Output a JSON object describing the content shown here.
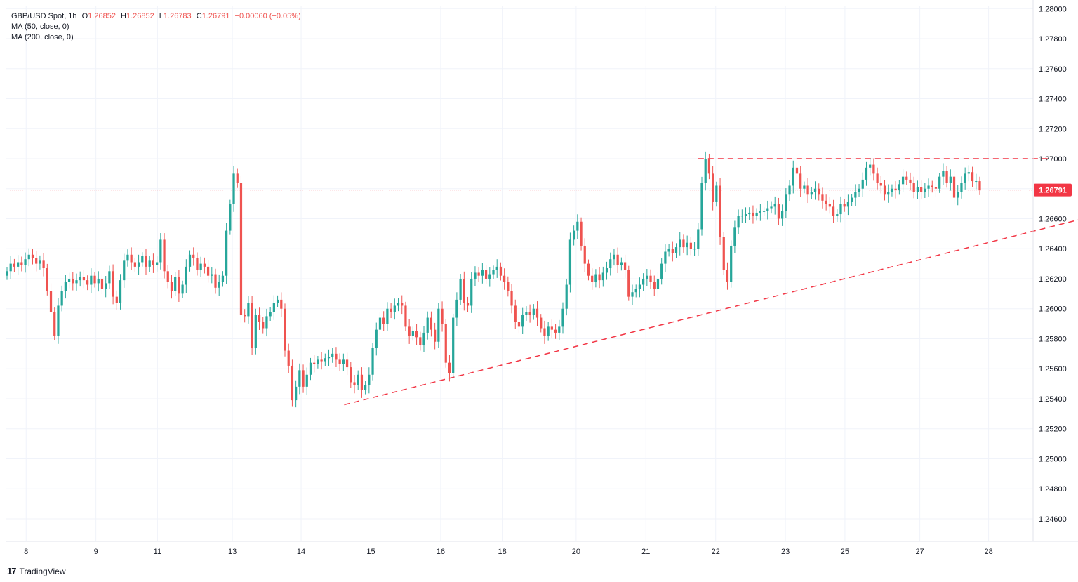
{
  "header": {
    "symbol": "GBP/USD Spot, 1h",
    "open_label": "O",
    "open": "1.26852",
    "high_label": "H",
    "high": "1.26852",
    "low_label": "L",
    "low": "1.26783",
    "close_label": "C",
    "close": "1.26791",
    "change": "−0.00060 (−0.05%)",
    "ma1": "MA (50, close, 0)",
    "ma2": "MA (200, close, 0)"
  },
  "brand": {
    "name": "TradingView",
    "icon": "tradingview-logo-icon"
  },
  "colors": {
    "up": "#26a69a",
    "down": "#ef5350",
    "grid": "#f0f3fa",
    "line": "#f23645",
    "price_tag": "#f23645"
  },
  "chart_data": {
    "type": "candlestick",
    "title": "GBP/USD Spot, 1h",
    "ylim": [
      1.2445,
      1.2802
    ],
    "y_ticks": [
      "1.28000",
      "1.27800",
      "1.27600",
      "1.27400",
      "1.27200",
      "1.27000",
      "1.26800",
      "1.26600",
      "1.26400",
      "1.26200",
      "1.26000",
      "1.25800",
      "1.25600",
      "1.25400",
      "1.25200",
      "1.25000",
      "1.24800",
      "1.24600"
    ],
    "x_ticks": [
      "8",
      "9",
      "11",
      "13",
      "14",
      "15",
      "16",
      "18",
      "20",
      "21",
      "22",
      "23",
      "25",
      "27",
      "28"
    ],
    "last_price": "1.26791",
    "grid": true,
    "resistance_line": {
      "style": "dashed",
      "y": 1.27,
      "x_start": 0.675,
      "x_end": 1.02
    },
    "support_trendline": {
      "style": "dashed",
      "points": [
        [
          0.33,
          1.2536
        ],
        [
          1.05,
          1.266
        ]
      ]
    },
    "series": [
      {
        "close": [
          1.2625,
          1.263,
          1.2628,
          1.2631,
          1.2629,
          1.2633,
          1.2636,
          1.2634,
          1.263,
          1.2632,
          1.2627,
          1.2612,
          1.2598,
          1.2582,
          1.2602,
          1.2612,
          1.2618,
          1.262,
          1.2617,
          1.2619,
          1.2621,
          1.2619,
          1.2616,
          1.2622,
          1.2617,
          1.262,
          1.2613,
          1.2617,
          1.2625,
          1.2608,
          1.2604,
          1.2619,
          1.2632,
          1.2636,
          1.2631,
          1.2628,
          1.2631,
          1.2635,
          1.2628,
          1.2632,
          1.2629,
          1.2631,
          1.2646,
          1.2625,
          1.2618,
          1.2612,
          1.2621,
          1.261,
          1.2616,
          1.2628,
          1.2636,
          1.2634,
          1.2626,
          1.263,
          1.2628,
          1.2622,
          1.2623,
          1.2614,
          1.2618,
          1.2622,
          1.2652,
          1.267,
          1.269,
          1.2684,
          1.2596,
          1.2595,
          1.2604,
          1.2574,
          1.2596,
          1.2591,
          1.2587,
          1.2595,
          1.2598,
          1.2604,
          1.2606,
          1.26,
          1.2572,
          1.2562,
          1.2539,
          1.2548,
          1.2559,
          1.2548,
          1.2556,
          1.2564,
          1.2563,
          1.2566,
          1.2565,
          1.2567,
          1.2568,
          1.257,
          1.2566,
          1.2563,
          1.2566,
          1.2561,
          1.2551,
          1.2549,
          1.2556,
          1.2546,
          1.2549,
          1.2556,
          1.2574,
          1.2586,
          1.2594,
          1.259,
          1.26,
          1.2598,
          1.2602,
          1.2604,
          1.2602,
          1.2588,
          1.2582,
          1.2585,
          1.2581,
          1.2576,
          1.2584,
          1.2594,
          1.2586,
          1.2578,
          1.26,
          1.259,
          1.2564,
          1.2557,
          1.2594,
          1.2606,
          1.262,
          1.2604,
          1.2602,
          1.262,
          1.2624,
          1.2622,
          1.2626,
          1.262,
          1.2623,
          1.2626,
          1.2628,
          1.2622,
          1.2618,
          1.2612,
          1.2602,
          1.2591,
          1.2588,
          1.2596,
          1.2598,
          1.2596,
          1.26,
          1.2594,
          1.2587,
          1.2582,
          1.2588,
          1.2586,
          1.2584,
          1.2588,
          1.26,
          1.2616,
          1.2646,
          1.2652,
          1.2658,
          1.2642,
          1.263,
          1.2622,
          1.2618,
          1.2623,
          1.2619,
          1.2624,
          1.2627,
          1.2633,
          1.2636,
          1.2629,
          1.2631,
          1.2626,
          1.2608,
          1.2611,
          1.2613,
          1.2616,
          1.262,
          1.2622,
          1.2618,
          1.2613,
          1.262,
          1.263,
          1.2638,
          1.264,
          1.2637,
          1.2641,
          1.2646,
          1.2641,
          1.2644,
          1.264,
          1.264,
          1.2653,
          1.2684,
          1.27,
          1.269,
          1.2671,
          1.2682,
          1.2648,
          1.2626,
          1.2618,
          1.2642,
          1.2654,
          1.2662,
          1.2662,
          1.2663,
          1.2664,
          1.2662,
          1.2664,
          1.2665,
          1.2665,
          1.2667,
          1.2668,
          1.267,
          1.266,
          1.2665,
          1.2676,
          1.2682,
          1.2694,
          1.269,
          1.268,
          1.2682,
          1.2676,
          1.2678,
          1.268,
          1.2676,
          1.2672,
          1.267,
          1.2668,
          1.2662,
          1.2663,
          1.267,
          1.2668,
          1.2671,
          1.2674,
          1.2678,
          1.268,
          1.2686,
          1.2694,
          1.2696,
          1.269,
          1.2684,
          1.2682,
          1.2676,
          1.2678,
          1.268,
          1.2679,
          1.2683,
          1.2688,
          1.2686,
          1.2684,
          1.2678,
          1.2681,
          1.2678,
          1.268,
          1.2682,
          1.2681,
          1.268,
          1.2688,
          1.2692,
          1.2684,
          1.2688,
          1.2674,
          1.2678,
          1.2684,
          1.269,
          1.2691,
          1.2685,
          1.2685,
          1.2679
        ]
      }
    ]
  }
}
